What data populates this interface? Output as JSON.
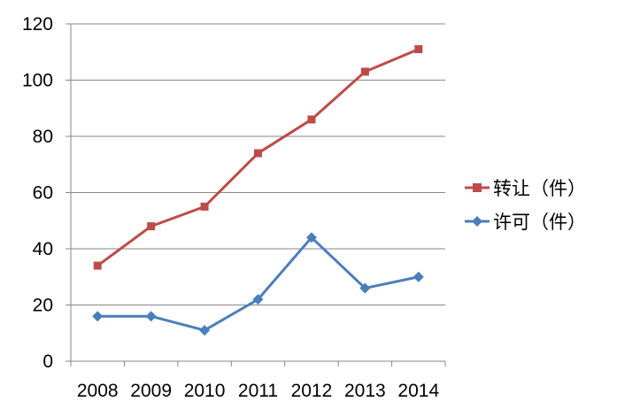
{
  "chart_data": {
    "type": "line",
    "categories": [
      "2008",
      "2009",
      "2010",
      "2011",
      "2012",
      "2013",
      "2014"
    ],
    "ylim": [
      0,
      120
    ],
    "yticks": [
      0,
      20,
      40,
      60,
      80,
      100,
      120
    ],
    "grid": true,
    "legend_position": "right",
    "series": [
      {
        "name": "转让（件）",
        "color": "#BE4B48",
        "marker": "square",
        "values": [
          34,
          48,
          55,
          74,
          86,
          103,
          111
        ]
      },
      {
        "name": "许可（件）",
        "color": "#4A7EBB",
        "marker": "diamond",
        "values": [
          16,
          16,
          11,
          22,
          44,
          26,
          30
        ]
      }
    ]
  }
}
